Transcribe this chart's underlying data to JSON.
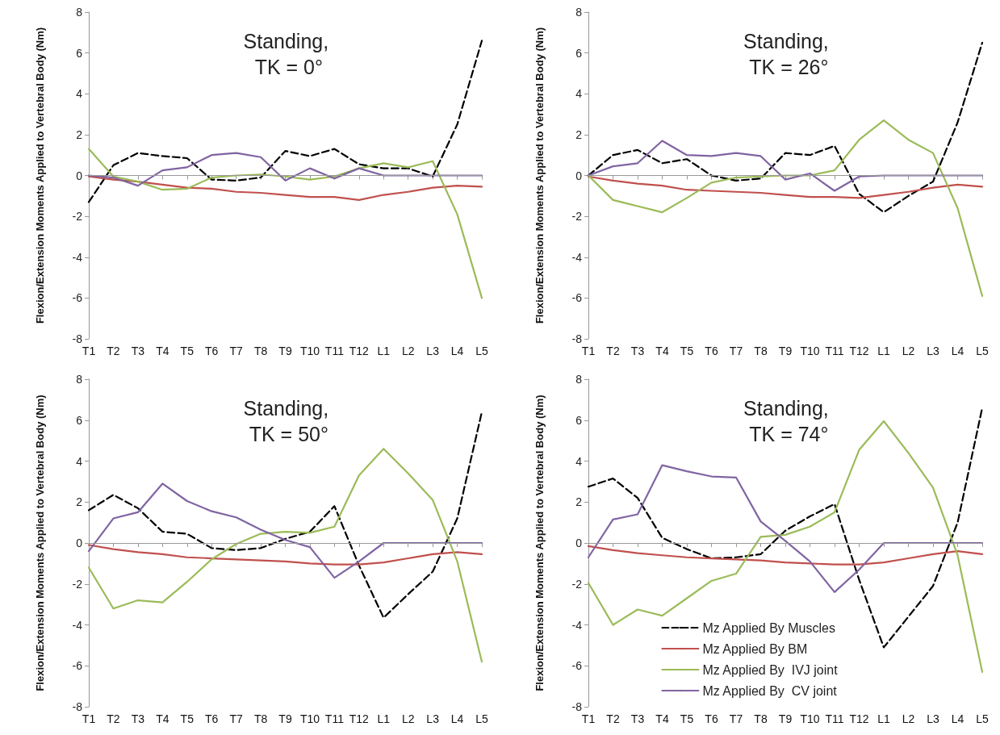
{
  "chart_data": [
    {
      "type": "line",
      "title": "Standing, TK = 0°",
      "ylabel": "Flexion/Extension Moments Applied to Vertebral Body (Nm)",
      "categories": [
        "T1",
        "T2",
        "T3",
        "T4",
        "T5",
        "T6",
        "T7",
        "T8",
        "T9",
        "T10",
        "T11",
        "T12",
        "L1",
        "L2",
        "L3",
        "L4",
        "L5"
      ],
      "ylim": [
        -8,
        8
      ],
      "yticks": [
        -8,
        -6,
        -4,
        -2,
        0,
        2,
        4,
        6,
        8
      ],
      "grid": false,
      "legend": false,
      "marker": "none",
      "ref_lines": [
        {
          "axis": "y",
          "value": 0,
          "color": "#999999"
        }
      ],
      "series": [
        {
          "color": "#000000",
          "line_style": "dashed",
          "values": [
            -1.3,
            0.5,
            1.1,
            0.95,
            0.85,
            -0.2,
            -0.25,
            -0.1,
            1.2,
            0.95,
            1.3,
            0.55,
            0.35,
            0.35,
            -0.05,
            2.5,
            6.6
          ]
        },
        {
          "color": "#c0504d",
          "line_style": "solid",
          "values": [
            -0.05,
            -0.2,
            -0.3,
            -0.45,
            -0.6,
            -0.65,
            -0.8,
            -0.85,
            -0.95,
            -1.05,
            -1.05,
            -1.2,
            -0.95,
            -0.8,
            -0.6,
            -0.5,
            -0.55
          ]
        },
        {
          "color": "#9bbb59",
          "line_style": "solid",
          "values": [
            1.3,
            -0.05,
            -0.3,
            -0.7,
            -0.65,
            -0.1,
            0,
            0.05,
            -0.05,
            -0.2,
            -0.05,
            0.35,
            0.6,
            0.4,
            0.7,
            -1.9,
            -6
          ]
        },
        {
          "color": "#8064a2",
          "line_style": "solid",
          "values": [
            0,
            -0.1,
            -0.5,
            0.25,
            0.4,
            1,
            1.1,
            0.9,
            -0.25,
            0.35,
            -0.15,
            0.35,
            0,
            0,
            0,
            0,
            0
          ]
        }
      ]
    },
    {
      "type": "line",
      "title": "Standing, TK = 26°",
      "ylabel": "Flexion/Extension Moments Applied to Vertebral Body (Nm)",
      "categories": [
        "T1",
        "T2",
        "T3",
        "T4",
        "T5",
        "T6",
        "T7",
        "T8",
        "T9",
        "T10",
        "T11",
        "T12",
        "L1",
        "L2",
        "L3",
        "L4",
        "L5"
      ],
      "ylim": [
        -8,
        8
      ],
      "yticks": [
        -8,
        -6,
        -4,
        -2,
        0,
        2,
        4,
        6,
        8
      ],
      "grid": false,
      "legend": false,
      "marker": "none",
      "ref_lines": [
        {
          "axis": "y",
          "value": 0,
          "color": "#999999"
        }
      ],
      "series": [
        {
          "color": "#000000",
          "line_style": "dashed",
          "values": [
            0,
            1,
            1.25,
            0.6,
            0.8,
            0,
            -0.25,
            -0.15,
            1.1,
            1,
            1.45,
            -0.9,
            -1.8,
            -1,
            -0.3,
            2.6,
            6.5
          ]
        },
        {
          "color": "#c0504d",
          "line_style": "solid",
          "values": [
            -0.05,
            -0.25,
            -0.4,
            -0.5,
            -0.7,
            -0.75,
            -0.8,
            -0.85,
            -0.95,
            -1.05,
            -1.05,
            -1.1,
            -0.95,
            -0.8,
            -0.6,
            -0.45,
            -0.55
          ]
        },
        {
          "color": "#9bbb59",
          "line_style": "solid",
          "values": [
            0,
            -1.2,
            -1.5,
            -1.8,
            -1.1,
            -0.35,
            -0.1,
            -0.05,
            0,
            0,
            0.25,
            1.75,
            2.7,
            1.75,
            1.1,
            -1.6,
            -5.9
          ]
        },
        {
          "color": "#8064a2",
          "line_style": "solid",
          "values": [
            0,
            0.45,
            0.6,
            1.7,
            1,
            0.95,
            1.1,
            0.95,
            -0.2,
            0.1,
            -0.75,
            -0.05,
            0,
            0,
            0,
            0,
            0
          ]
        }
      ]
    },
    {
      "type": "line",
      "title": "Standing, TK = 50°",
      "ylabel": "Flexion/Extension Moments Applied to Vertebral Body (Nm)",
      "categories": [
        "T1",
        "T2",
        "T3",
        "T4",
        "T5",
        "T6",
        "T7",
        "T8",
        "T9",
        "T10",
        "T11",
        "T12",
        "L1",
        "L2",
        "L3",
        "L4",
        "L5"
      ],
      "ylim": [
        -8,
        8
      ],
      "yticks": [
        -8,
        -6,
        -4,
        -2,
        0,
        2,
        4,
        6,
        8
      ],
      "grid": false,
      "legend": false,
      "marker": "none",
      "ref_lines": [
        {
          "axis": "y",
          "value": 0,
          "color": "#999999"
        }
      ],
      "series": [
        {
          "color": "#000000",
          "line_style": "dashed",
          "values": [
            1.6,
            2.35,
            1.7,
            0.55,
            0.45,
            -0.25,
            -0.35,
            -0.25,
            0.2,
            0.55,
            1.8,
            -1.1,
            -3.65,
            -2.5,
            -1.4,
            1.2,
            6.4
          ]
        },
        {
          "color": "#c0504d",
          "line_style": "solid",
          "values": [
            -0.1,
            -0.3,
            -0.45,
            -0.55,
            -0.7,
            -0.75,
            -0.8,
            -0.85,
            -0.9,
            -1,
            -1.05,
            -1.05,
            -0.95,
            -0.75,
            -0.55,
            -0.45,
            -0.55
          ]
        },
        {
          "color": "#9bbb59",
          "line_style": "solid",
          "values": [
            -1.2,
            -3.2,
            -2.8,
            -2.9,
            -1.9,
            -0.8,
            -0.05,
            0.45,
            0.55,
            0.5,
            0.8,
            3.3,
            4.6,
            3.4,
            2.1,
            -0.9,
            -5.8
          ]
        },
        {
          "color": "#8064a2",
          "line_style": "solid",
          "values": [
            -0.4,
            1.2,
            1.5,
            2.9,
            2.05,
            1.55,
            1.25,
            0.65,
            0.15,
            -0.2,
            -1.7,
            -0.9,
            0,
            0,
            0,
            0,
            0
          ]
        }
      ]
    },
    {
      "type": "line",
      "title": "Standing, TK = 74°",
      "ylabel": "Flexion/Extension Moments Applied to Vertebral Body (Nm)",
      "categories": [
        "T1",
        "T2",
        "T3",
        "T4",
        "T5",
        "T6",
        "T7",
        "T8",
        "T9",
        "T10",
        "T11",
        "T12",
        "L1",
        "L2",
        "L3",
        "L4",
        "L5"
      ],
      "ylim": [
        -8,
        8
      ],
      "yticks": [
        -8,
        -6,
        -4,
        -2,
        0,
        2,
        4,
        6,
        8
      ],
      "grid": false,
      "legend": "bottom",
      "marker": "none",
      "ref_lines": [
        {
          "axis": "y",
          "value": 0,
          "color": "#999999"
        }
      ],
      "series": [
        {
          "name": "Mz Applied By Muscles",
          "color": "#000000",
          "line_style": "dashed",
          "values": [
            2.75,
            3.15,
            2.2,
            0.25,
            -0.3,
            -0.75,
            -0.7,
            -0.55,
            0.6,
            1.3,
            1.9,
            -1.8,
            -5.1,
            -3.6,
            -2.1,
            1,
            6.6
          ]
        },
        {
          "name": "Mz Applied By BM",
          "color": "#c0504d",
          "line_style": "solid",
          "values": [
            -0.15,
            -0.35,
            -0.5,
            -0.6,
            -0.7,
            -0.75,
            -0.8,
            -0.85,
            -0.95,
            -1,
            -1.05,
            -1.05,
            -0.95,
            -0.75,
            -0.55,
            -0.4,
            -0.55
          ]
        },
        {
          "name": "Mz Applied By  IVJ joint",
          "color": "#9bbb59",
          "line_style": "solid",
          "values": [
            -1.95,
            -4,
            -3.25,
            -3.55,
            -2.7,
            -1.85,
            -1.5,
            0.3,
            0.4,
            0.8,
            1.5,
            4.55,
            5.95,
            4.4,
            2.7,
            -0.6,
            -6.3
          ]
        },
        {
          "name": "Mz Applied By  CV joint",
          "color": "#8064a2",
          "line_style": "solid",
          "values": [
            -0.7,
            1.15,
            1.4,
            3.8,
            3.5,
            3.25,
            3.2,
            1.05,
            0.1,
            -0.9,
            -2.4,
            -1.3,
            0,
            0,
            0,
            0,
            0
          ]
        }
      ]
    }
  ]
}
